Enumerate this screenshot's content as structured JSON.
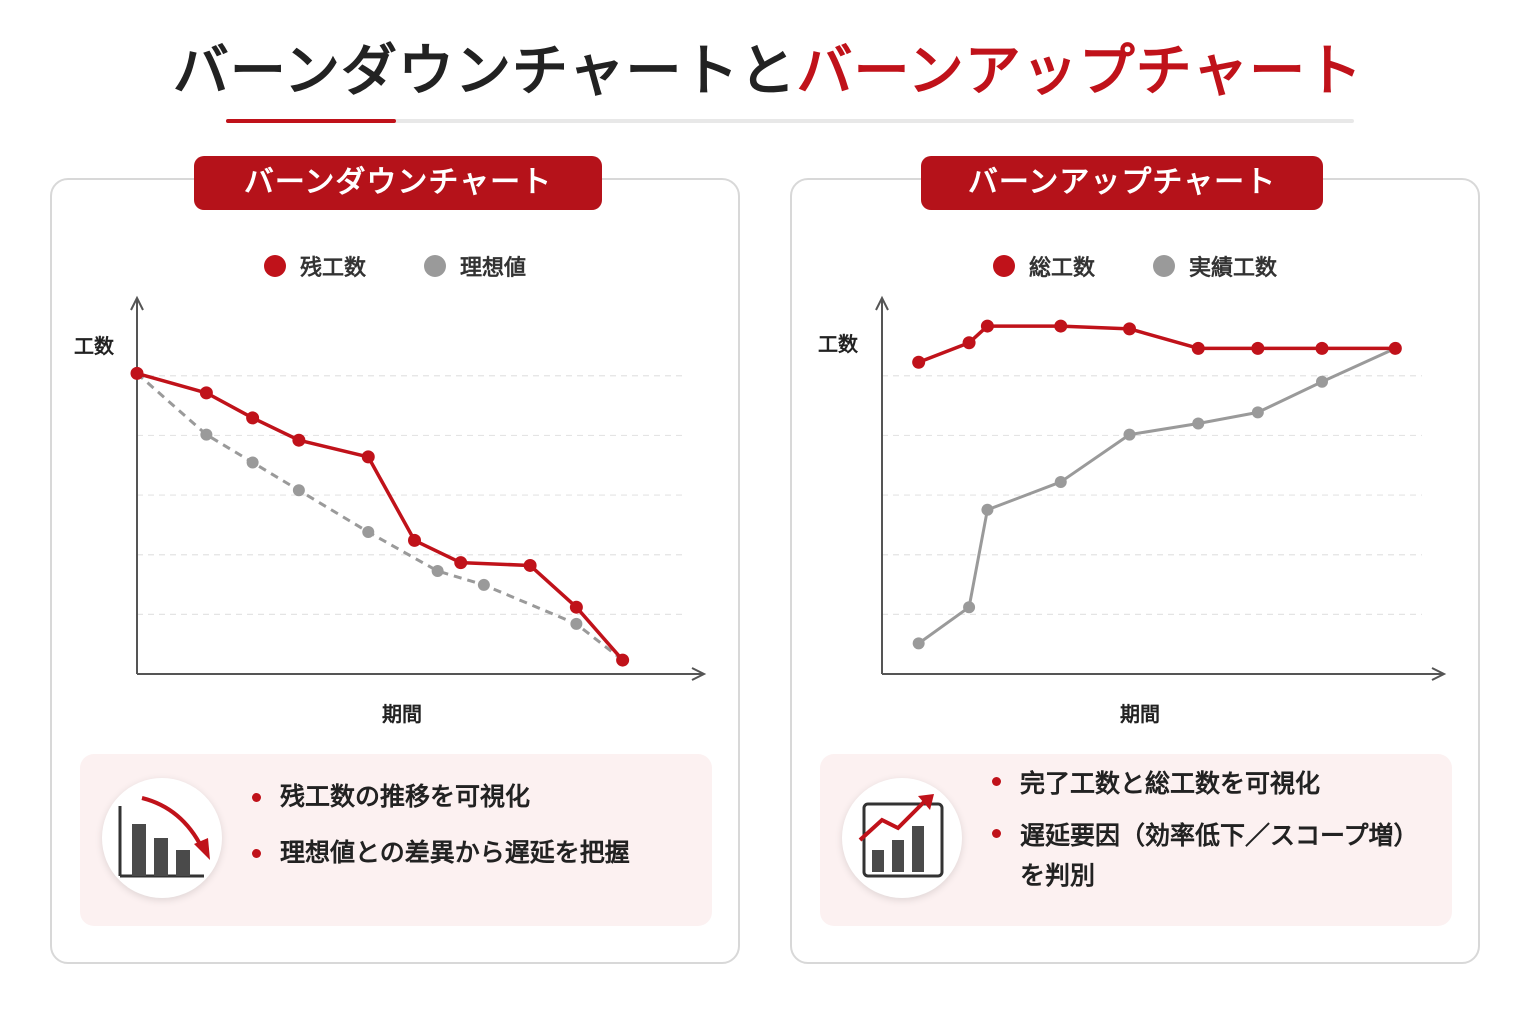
{
  "header": {
    "title_black": "バーンダウンチャートと",
    "title_red": "バーンアップチャート"
  },
  "colors": {
    "accent": "#c0121a",
    "gray_series": "#9a9a9a",
    "grid": "#e4e4e4"
  },
  "left_panel": {
    "tag": "バーンダウンチャート",
    "icon": "burndown-chart-icon",
    "bullets": [
      "残工数の推移を可視化",
      "理想値との差異から遅延を把握"
    ]
  },
  "right_panel": {
    "tag": "バーンアップチャート",
    "icon": "burnup-chart-icon",
    "bullets": [
      "完了工数と総工数を可視化",
      "遅延要因（効率低下／スコープ増）を判別"
    ]
  },
  "chart_data": [
    {
      "type": "line",
      "title": "バーンダウンチャート",
      "xlabel": "期間",
      "ylabel": "工数",
      "ylim": [
        0,
        6
      ],
      "xlim": [
        0,
        12
      ],
      "grid": true,
      "legend_position": "top-center",
      "series": [
        {
          "name": "残工数",
          "color": "#c0121a",
          "style": "solid",
          "x": [
            0,
            1.5,
            2.5,
            3.5,
            5,
            6,
            7,
            8.5,
            9.5,
            10.5
          ],
          "y": [
            5.4,
            5.05,
            4.6,
            4.2,
            3.9,
            2.4,
            2.0,
            1.95,
            1.2,
            0.25
          ]
        },
        {
          "name": "理想値",
          "color": "#9a9a9a",
          "style": "dashed",
          "x": [
            0,
            1.5,
            2.5,
            3.5,
            5,
            6.5,
            7.5,
            9.5,
            10.5
          ],
          "y": [
            5.4,
            4.3,
            3.8,
            3.3,
            2.55,
            1.85,
            1.6,
            0.9,
            0.25
          ]
        }
      ]
    },
    {
      "type": "line",
      "title": "バーンアップチャート",
      "xlabel": "期間",
      "ylabel": "工数",
      "ylim": [
        0,
        6
      ],
      "xlim": [
        0,
        12
      ],
      "grid": true,
      "legend_position": "top-center",
      "series": [
        {
          "name": "総工数",
          "color": "#c0121a",
          "style": "solid",
          "x": [
            0.8,
            1.9,
            2.3,
            3.9,
            5.4,
            6.9,
            8.2,
            9.6,
            11.2
          ],
          "y": [
            5.6,
            5.95,
            6.25,
            6.25,
            6.2,
            5.85,
            5.85,
            5.85,
            5.85
          ]
        },
        {
          "name": "実績工数",
          "color": "#9a9a9a",
          "style": "solid",
          "x": [
            0.8,
            1.9,
            2.3,
            3.9,
            5.4,
            6.9,
            8.2,
            9.6,
            11.2
          ],
          "y": [
            0.55,
            1.2,
            2.95,
            3.45,
            4.3,
            4.5,
            4.7,
            5.25,
            5.85
          ]
        }
      ]
    }
  ]
}
